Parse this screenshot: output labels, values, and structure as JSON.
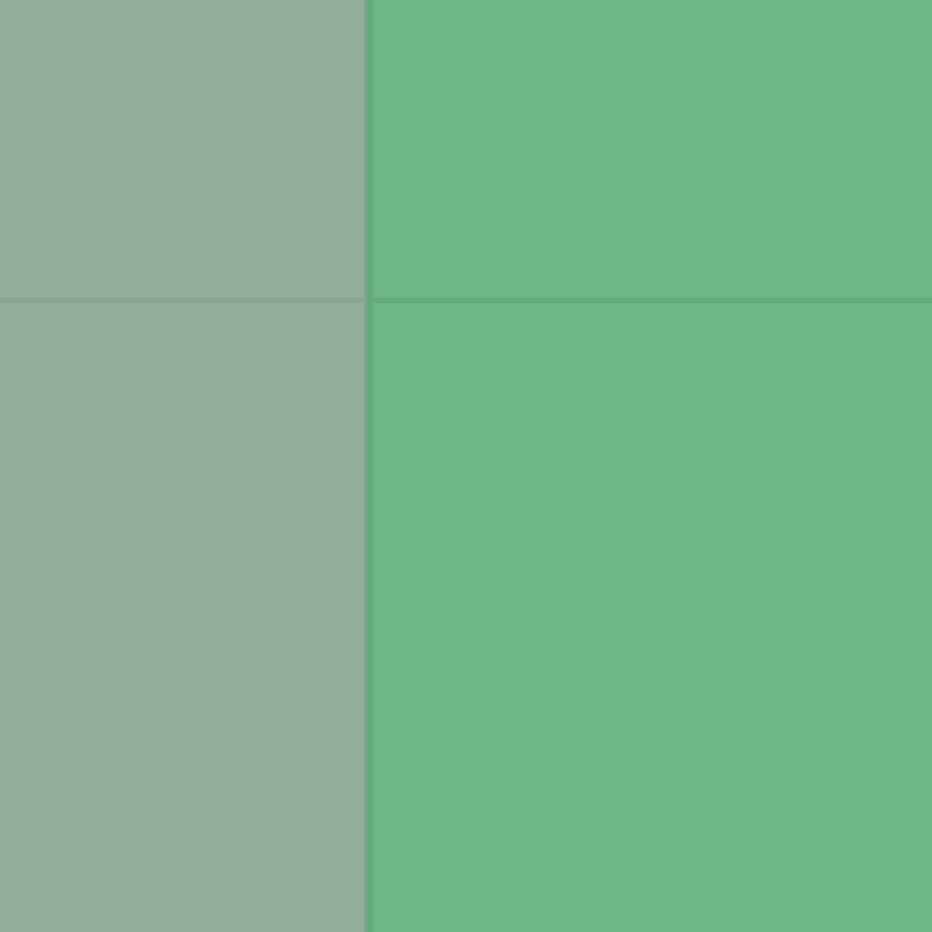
{
  "colors": {
    "left_panel": "#92ae9b",
    "right_panel": "#6cb784",
    "left_divider": "#879f8f",
    "right_divider": "#64aa79",
    "horizontal_divider_left": "#8aa692",
    "horizontal_divider_right": "#64ac7a"
  }
}
